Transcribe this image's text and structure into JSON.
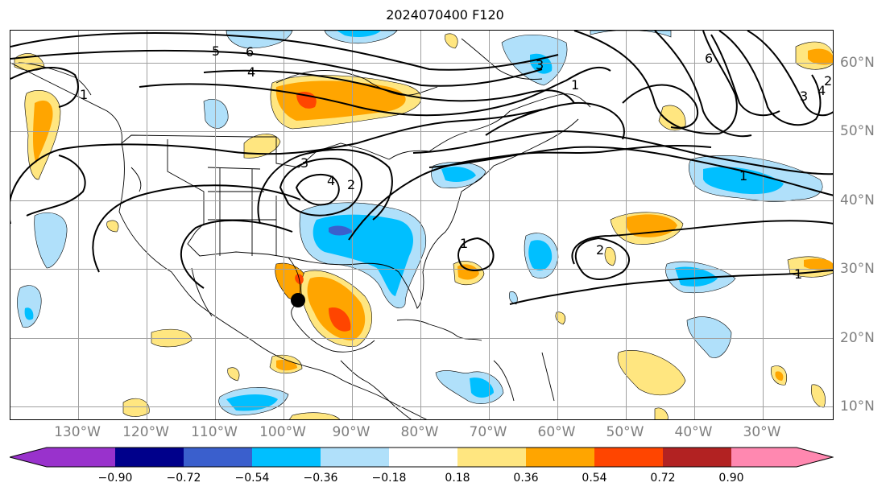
{
  "title": "2024070400 F120",
  "map": {
    "lon_labels": [
      "130°W",
      "120°W",
      "110°W",
      "100°W",
      "90°W",
      "80°W",
      "70°W",
      "60°W",
      "50°W",
      "40°W",
      "30°W"
    ],
    "lat_labels": [
      "60°N",
      "50°N",
      "40°N",
      "30°N",
      "20°N",
      "10°N"
    ],
    "contour_labels": [
      "5",
      "6",
      "4",
      "3",
      "4",
      "2",
      "1",
      "2",
      "3",
      "1",
      "6",
      "3",
      "4",
      "1",
      "1",
      "2",
      "1"
    ],
    "storm_marker": "storm-center-dot",
    "grid_color": "#a0a0a0",
    "coast_color": "#000000"
  },
  "colorbar": {
    "tick_labels": [
      "−0.90",
      "−0.72",
      "−0.54",
      "−0.36",
      "−0.18",
      "0.18",
      "0.36",
      "0.54",
      "0.72",
      "0.90"
    ],
    "colors": [
      "#9932cc",
      "#00008b",
      "#3a5fcd",
      "#00bfff",
      "#b0e0fa",
      "#ffffff",
      "#ffe680",
      "#ffa500",
      "#ff4500",
      "#b22222",
      "#ff88b0"
    ]
  }
}
